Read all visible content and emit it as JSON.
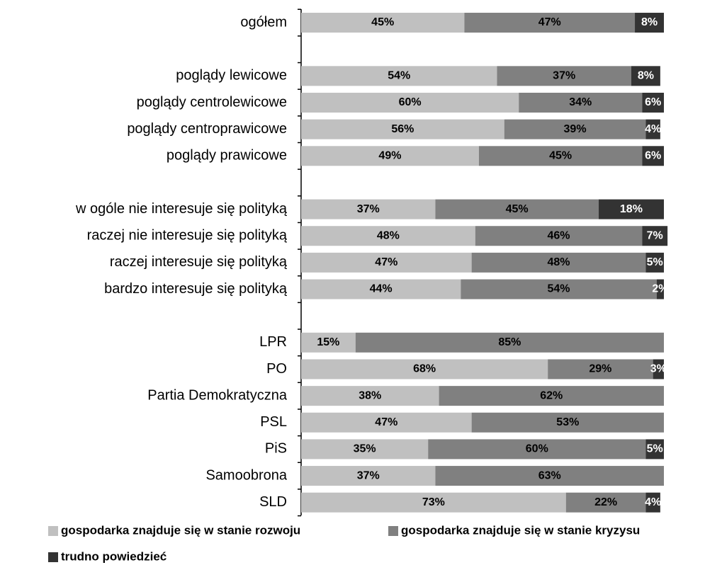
{
  "chart_data": {
    "type": "stacked-barh",
    "categories": [
      "ogółem",
      null,
      "poglądy lewicowe",
      "poglądy centrolewicowe",
      "poglądy centroprawicowe",
      "poglądy prawicowe",
      null,
      "w ogóle nie interesuje się polityką",
      "raczej nie interesuje się polityką",
      "raczej interesuje się polityką",
      "bardzo interesuje się polityką",
      null,
      "LPR",
      "PO",
      "Partia Demokratyczna",
      "PSL",
      "PiS",
      "Samoobrona",
      "SLD"
    ],
    "xlim": [
      0,
      100
    ],
    "series": [
      {
        "name": "gospodarka znajduje się w stanie rozwoju",
        "color": "#c0c0c0",
        "values": [
          45,
          null,
          54,
          60,
          56,
          49,
          null,
          37,
          48,
          47,
          44,
          null,
          15,
          68,
          38,
          47,
          35,
          37,
          73
        ],
        "value_labels": [
          "45%",
          null,
          "54%",
          "60%",
          "56%",
          "49%",
          null,
          "37%",
          "48%",
          "47%",
          "44%",
          null,
          "15%",
          "68%",
          "38%",
          "47%",
          "35%",
          "37%",
          "73%"
        ]
      },
      {
        "name": "gospodarka znajduje się w stanie kryzysu",
        "color": "#808080",
        "values": [
          47,
          null,
          37,
          34,
          39,
          45,
          null,
          45,
          46,
          48,
          54,
          null,
          85,
          29,
          62,
          53,
          60,
          63,
          22
        ],
        "value_labels": [
          "47%",
          null,
          "37%",
          "34%",
          "39%",
          "45%",
          null,
          "45%",
          "46%",
          "48%",
          "54%",
          null,
          "85%",
          "29%",
          "62%",
          "53%",
          "60%",
          "63%",
          "22%"
        ]
      },
      {
        "name": "trudno powiedzieć",
        "color": "#333333",
        "values": [
          8,
          null,
          8,
          6,
          4,
          6,
          null,
          18,
          7,
          5,
          2,
          null,
          null,
          3,
          null,
          null,
          5,
          null,
          4
        ],
        "value_labels": [
          "8%",
          null,
          "8%",
          "6%",
          "4%",
          "6%",
          null,
          "18%",
          "7%",
          "5%",
          "2%",
          null,
          null,
          "3%",
          null,
          null,
          "5%",
          null,
          "4%"
        ]
      }
    ]
  }
}
